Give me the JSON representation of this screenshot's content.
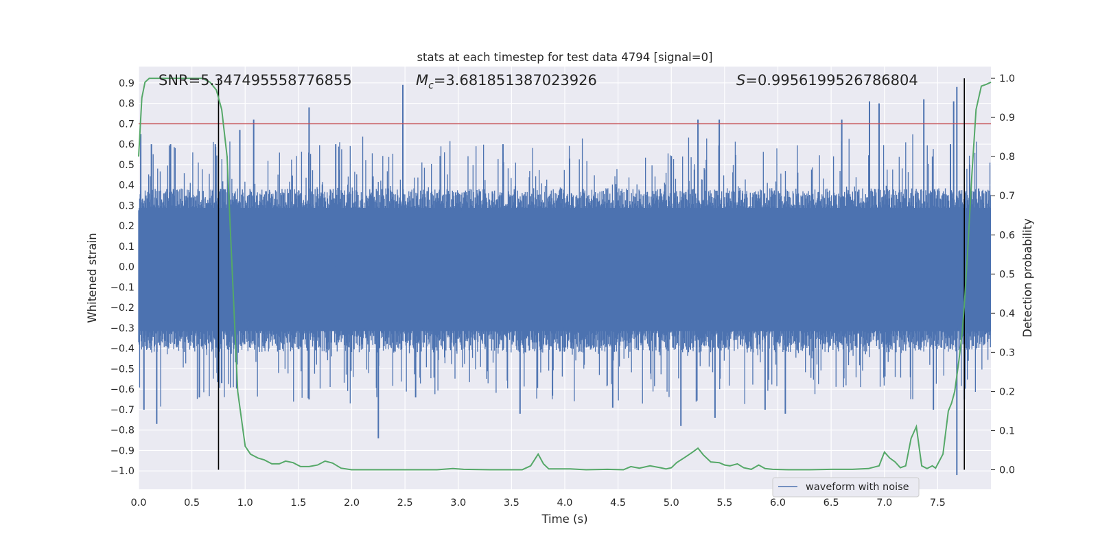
{
  "chart_data": {
    "type": "line",
    "title": "stats at each timestep for test data 4794 [signal=0]",
    "xlabel": "Time (s)",
    "ylabel_left": "Whitened strain",
    "ylabel_right": "Detection probability",
    "xlim": [
      0.0,
      8.0
    ],
    "ylim_left": [
      -1.09,
      0.98
    ],
    "ylim_right": [
      -0.05,
      1.03
    ],
    "x_ticks": [
      "0.0",
      "0.5",
      "1.0",
      "1.5",
      "2.0",
      "2.5",
      "3.0",
      "3.5",
      "4.0",
      "4.5",
      "5.0",
      "5.5",
      "6.0",
      "6.5",
      "7.0",
      "7.5"
    ],
    "y_left_ticks": [
      "0.9",
      "0.8",
      "0.7",
      "0.6",
      "0.5",
      "0.4",
      "0.3",
      "0.2",
      "0.1",
      "0.0",
      "−0.1",
      "−0.2",
      "−0.3",
      "−0.4",
      "−0.5",
      "−0.6",
      "−0.7",
      "−0.8",
      "−0.9",
      "−1.0"
    ],
    "y_right_ticks": [
      "1.0",
      "0.9",
      "0.8",
      "0.7",
      "0.6",
      "0.5",
      "0.4",
      "0.3",
      "0.2",
      "0.1",
      "0.0"
    ],
    "grid": true,
    "legend_position": "bottom-right",
    "annotations": {
      "snr": "SNR=5.347495558776855",
      "mc_symbol": "M",
      "mc_sub": "c",
      "mc_value": "=3.681851387023926",
      "s_symbol": "S",
      "s_value": "=0.9956199526786804"
    },
    "threshold_left": 0.7,
    "vertical_lines_x": [
      0.75,
      7.75
    ],
    "waveform": {
      "name": "waveform with noise",
      "color": "#4c72b0",
      "approx_envelope_low": -0.35,
      "approx_envelope_high": 0.32,
      "peaks": [
        {
          "x": 0.02,
          "y": 0.65
        },
        {
          "x": 0.05,
          "y": -0.7
        },
        {
          "x": 0.12,
          "y": 0.6
        },
        {
          "x": 0.17,
          "y": -0.77
        },
        {
          "x": 0.3,
          "y": 0.6
        },
        {
          "x": 0.57,
          "y": -0.64
        },
        {
          "x": 0.72,
          "y": 0.6
        },
        {
          "x": 0.78,
          "y": -0.57
        },
        {
          "x": 0.95,
          "y": 0.67
        },
        {
          "x": 1.08,
          "y": 0.72
        },
        {
          "x": 1.6,
          "y": -0.65
        },
        {
          "x": 1.6,
          "y": 0.78
        },
        {
          "x": 1.85,
          "y": 0.6
        },
        {
          "x": 2.25,
          "y": -0.84
        },
        {
          "x": 2.48,
          "y": 0.89
        },
        {
          "x": 2.6,
          "y": -0.64
        },
        {
          "x": 3.42,
          "y": 0.6
        },
        {
          "x": 3.58,
          "y": -0.72
        },
        {
          "x": 4.45,
          "y": -0.69
        },
        {
          "x": 5.09,
          "y": -0.78
        },
        {
          "x": 5.25,
          "y": 0.72
        },
        {
          "x": 5.41,
          "y": -0.74
        },
        {
          "x": 5.45,
          "y": 0.72
        },
        {
          "x": 5.88,
          "y": -0.7
        },
        {
          "x": 6.07,
          "y": -0.72
        },
        {
          "x": 6.6,
          "y": 0.72
        },
        {
          "x": 6.86,
          "y": 0.81
        },
        {
          "x": 6.95,
          "y": 0.8
        },
        {
          "x": 7.37,
          "y": 0.82
        },
        {
          "x": 7.46,
          "y": -0.7
        },
        {
          "x": 7.62,
          "y": 0.6
        },
        {
          "x": 7.65,
          "y": 0.81
        },
        {
          "x": 7.68,
          "y": 0.88
        },
        {
          "x": 7.68,
          "y": -1.02
        },
        {
          "x": 7.75,
          "y": -0.65
        },
        {
          "x": 7.8,
          "y": 0.5
        }
      ]
    },
    "series": [
      {
        "color": "#55a868",
        "axis": "right",
        "x": [
          0.0,
          0.03,
          0.06,
          0.1,
          0.2,
          0.3,
          0.4,
          0.5,
          0.6,
          0.67,
          0.73,
          0.78,
          0.83,
          0.88,
          0.93,
          1.0,
          1.05,
          1.12,
          1.18,
          1.25,
          1.32,
          1.38,
          1.45,
          1.52,
          1.6,
          1.68,
          1.75,
          1.82,
          1.9,
          2.0,
          2.2,
          2.5,
          2.8,
          2.95,
          3.05,
          3.3,
          3.6,
          3.68,
          3.75,
          3.8,
          3.85,
          3.95,
          4.05,
          4.2,
          4.4,
          4.55,
          4.62,
          4.7,
          4.8,
          4.9,
          4.95,
          5.0,
          5.05,
          5.13,
          5.2,
          5.25,
          5.3,
          5.37,
          5.45,
          5.5,
          5.55,
          5.62,
          5.68,
          5.75,
          5.82,
          5.88,
          5.95,
          6.1,
          6.3,
          6.5,
          6.7,
          6.85,
          6.95,
          7.0,
          7.05,
          7.1,
          7.15,
          7.2,
          7.25,
          7.3,
          7.35,
          7.4,
          7.45,
          7.48,
          7.55,
          7.6,
          7.63,
          7.66,
          7.7,
          7.73,
          7.75,
          7.78,
          7.82,
          7.86,
          7.91,
          7.96,
          8.0
        ],
        "y": [
          0.8,
          0.95,
          0.99,
          1.0,
          1.0,
          1.0,
          1.0,
          1.0,
          1.0,
          0.99,
          0.97,
          0.92,
          0.8,
          0.5,
          0.2,
          0.06,
          0.04,
          0.03,
          0.025,
          0.015,
          0.015,
          0.022,
          0.018,
          0.008,
          0.008,
          0.012,
          0.022,
          0.017,
          0.004,
          0.0,
          0.0,
          0.0,
          0.0,
          0.003,
          0.001,
          0.0,
          0.0,
          0.01,
          0.04,
          0.015,
          0.002,
          0.002,
          0.002,
          0.0,
          0.001,
          0.0,
          0.008,
          0.004,
          0.01,
          0.005,
          0.002,
          0.005,
          0.018,
          0.032,
          0.045,
          0.055,
          0.038,
          0.02,
          0.018,
          0.012,
          0.01,
          0.015,
          0.005,
          0.001,
          0.012,
          0.003,
          0.001,
          0.0,
          0.0,
          0.001,
          0.001,
          0.003,
          0.01,
          0.045,
          0.03,
          0.02,
          0.005,
          0.01,
          0.08,
          0.11,
          0.01,
          0.003,
          0.01,
          0.004,
          0.04,
          0.15,
          0.17,
          0.2,
          0.28,
          0.35,
          0.42,
          0.55,
          0.75,
          0.92,
          0.98,
          0.985,
          0.99
        ]
      }
    ]
  }
}
